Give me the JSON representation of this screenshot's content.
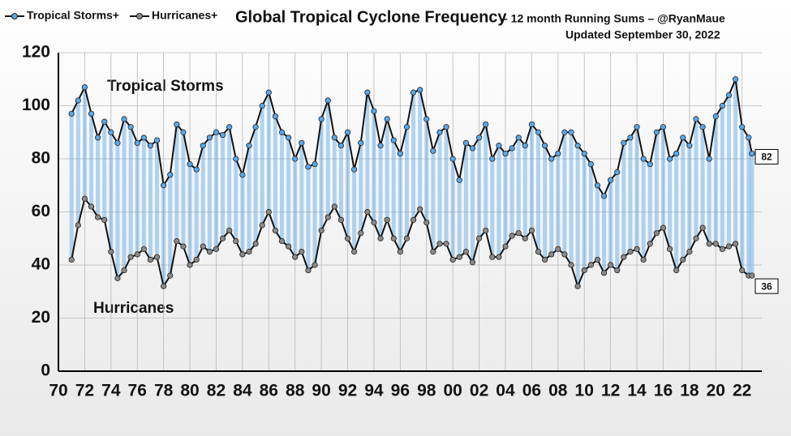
{
  "chart_data": {
    "type": "line",
    "title": "Global Tropical Cyclone Frequency",
    "subtitle": "– 12 month Running Sums – @RyanMaue",
    "updated": "Updated September 30, 2022",
    "annotations": [
      "Tropical Storms",
      "Hurricanes"
    ],
    "x": [
      1971.0,
      1971.5,
      1972.0,
      1972.5,
      1973.0,
      1973.5,
      1974.0,
      1974.5,
      1975.0,
      1975.5,
      1976.0,
      1976.5,
      1977.0,
      1977.5,
      1978.0,
      1978.5,
      1979.0,
      1979.5,
      1980.0,
      1980.5,
      1981.0,
      1981.5,
      1982.0,
      1982.5,
      1983.0,
      1983.5,
      1984.0,
      1984.5,
      1985.0,
      1985.5,
      1986.0,
      1986.5,
      1987.0,
      1987.5,
      1988.0,
      1988.5,
      1989.0,
      1989.5,
      1990.0,
      1990.5,
      1991.0,
      1991.5,
      1992.0,
      1992.5,
      1993.0,
      1993.5,
      1994.0,
      1994.5,
      1995.0,
      1995.5,
      1996.0,
      1996.5,
      1997.0,
      1997.5,
      1998.0,
      1998.5,
      1999.0,
      1999.5,
      2000.0,
      2000.5,
      2001.0,
      2001.5,
      2002.0,
      2002.5,
      2003.0,
      2003.5,
      2004.0,
      2004.5,
      2005.0,
      2005.5,
      2006.0,
      2006.5,
      2007.0,
      2007.5,
      2008.0,
      2008.5,
      2009.0,
      2009.5,
      2010.0,
      2010.5,
      2011.0,
      2011.5,
      2012.0,
      2012.5,
      2013.0,
      2013.5,
      2014.0,
      2014.5,
      2015.0,
      2015.5,
      2016.0,
      2016.5,
      2017.0,
      2017.5,
      2018.0,
      2018.5,
      2019.0,
      2019.5,
      2020.0,
      2020.5,
      2021.0,
      2021.5,
      2022.0,
      2022.5,
      2022.75
    ],
    "series": [
      {
        "name": "Tropical Storms+",
        "color": "#5aa8e8",
        "values": [
          97,
          102,
          107,
          97,
          88,
          94,
          90,
          86,
          95,
          92,
          86,
          88,
          85,
          87,
          70,
          74,
          93,
          90,
          78,
          76,
          85,
          88,
          90,
          89,
          92,
          80,
          74,
          85,
          92,
          100,
          105,
          96,
          90,
          88,
          80,
          86,
          77,
          78,
          95,
          102,
          88,
          85,
          90,
          76,
          86,
          105,
          98,
          85,
          95,
          87,
          82,
          92,
          105,
          106,
          95,
          83,
          90,
          92,
          80,
          72,
          86,
          84,
          88,
          93,
          80,
          85,
          82,
          84,
          88,
          85,
          93,
          90,
          85,
          80,
          82,
          90,
          90,
          85,
          82,
          78,
          70,
          66,
          72,
          75,
          86,
          88,
          92,
          80,
          78,
          90,
          92,
          80,
          82,
          88,
          85,
          95,
          92,
          80,
          96,
          100,
          104,
          110,
          92,
          88,
          82
        ]
      },
      {
        "name": "Hurricanes+",
        "color": "#8a8a8a",
        "values": [
          42,
          55,
          65,
          62,
          58,
          57,
          45,
          35,
          38,
          43,
          44,
          46,
          42,
          43,
          32,
          36,
          49,
          47,
          40,
          42,
          47,
          45,
          46,
          50,
          53,
          49,
          44,
          45,
          48,
          55,
          60,
          53,
          49,
          47,
          43,
          45,
          38,
          40,
          53,
          58,
          62,
          57,
          50,
          45,
          52,
          60,
          56,
          50,
          57,
          50,
          45,
          50,
          57,
          61,
          56,
          45,
          48,
          48,
          42,
          43,
          45,
          41,
          50,
          53,
          43,
          43,
          47,
          51,
          52,
          50,
          53,
          45,
          42,
          44,
          46,
          44,
          40,
          32,
          38,
          40,
          42,
          37,
          40,
          38,
          43,
          45,
          46,
          42,
          48,
          52,
          54,
          46,
          38,
          42,
          45,
          50,
          54,
          48,
          48,
          46,
          47,
          48,
          38,
          36,
          36
        ]
      }
    ],
    "xlim": [
      1970,
      2023.5
    ],
    "xticks": [
      {
        "value": 1970,
        "label": "70"
      },
      {
        "value": 1972,
        "label": "72"
      },
      {
        "value": 1974,
        "label": "74"
      },
      {
        "value": 1976,
        "label": "76"
      },
      {
        "value": 1978,
        "label": "78"
      },
      {
        "value": 1980,
        "label": "80"
      },
      {
        "value": 1982,
        "label": "82"
      },
      {
        "value": 1984,
        "label": "84"
      },
      {
        "value": 1986,
        "label": "86"
      },
      {
        "value": 1988,
        "label": "88"
      },
      {
        "value": 1990,
        "label": "90"
      },
      {
        "value": 1992,
        "label": "92"
      },
      {
        "value": 1994,
        "label": "94"
      },
      {
        "value": 1996,
        "label": "96"
      },
      {
        "value": 1998,
        "label": "98"
      },
      {
        "value": 2000,
        "label": "00"
      },
      {
        "value": 2002,
        "label": "02"
      },
      {
        "value": 2004,
        "label": "04"
      },
      {
        "value": 2006,
        "label": "06"
      },
      {
        "value": 2008,
        "label": "08"
      },
      {
        "value": 2010,
        "label": "10"
      },
      {
        "value": 2012,
        "label": "12"
      },
      {
        "value": 2014,
        "label": "14"
      },
      {
        "value": 2016,
        "label": "16"
      },
      {
        "value": 2018,
        "label": "18"
      },
      {
        "value": 2020,
        "label": "20"
      },
      {
        "value": 2022,
        "label": "22"
      }
    ],
    "ylim": [
      0,
      120
    ],
    "yticks": [
      0,
      20,
      40,
      60,
      80,
      100,
      120
    ],
    "grid": true
  }
}
